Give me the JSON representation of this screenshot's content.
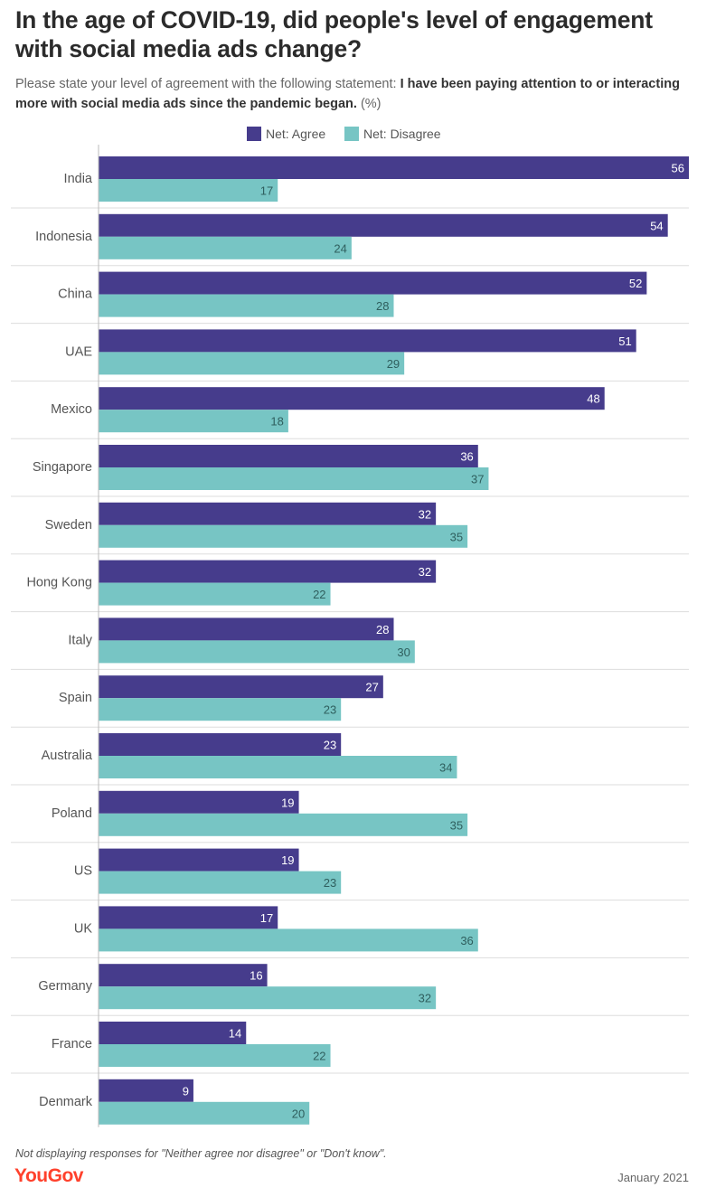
{
  "title": "In the age of COVID-19, did people's level of engagement with social media ads change?",
  "subtitle": {
    "prefix": "Please state your level of agreement with the following statement: ",
    "statement": "I have been paying attention to or interacting more with social media ads since the pandemic began.",
    "suffix": " (%)"
  },
  "footnote": "Not displaying responses for \"Neither agree nor disagree\" or \"Don't know\".",
  "logo": "YouGov",
  "date": "January 2021",
  "colors": {
    "agree": "#463c8c",
    "disagree": "#77c5c4",
    "grid": "#dddddd",
    "brand": "#ff412c"
  },
  "chart_data": {
    "type": "bar",
    "orientation": "horizontal",
    "grouped": true,
    "legend_position": "top",
    "categories": [
      "India",
      "Indonesia",
      "China",
      "UAE",
      "Mexico",
      "Singapore",
      "Sweden",
      "Hong Kong",
      "Italy",
      "Spain",
      "Australia",
      "Poland",
      "US",
      "UK",
      "Germany",
      "France",
      "Denmark"
    ],
    "series": [
      {
        "name": "Net: Agree",
        "color": "#463c8c",
        "values": [
          56,
          54,
          52,
          51,
          48,
          36,
          32,
          32,
          28,
          27,
          23,
          19,
          19,
          17,
          16,
          14,
          9
        ]
      },
      {
        "name": "Net: Disagree",
        "color": "#77c5c4",
        "values": [
          17,
          24,
          28,
          29,
          18,
          37,
          35,
          22,
          30,
          23,
          34,
          35,
          23,
          36,
          32,
          22,
          20
        ]
      }
    ],
    "xlim": [
      0,
      56
    ],
    "grid": false
  }
}
